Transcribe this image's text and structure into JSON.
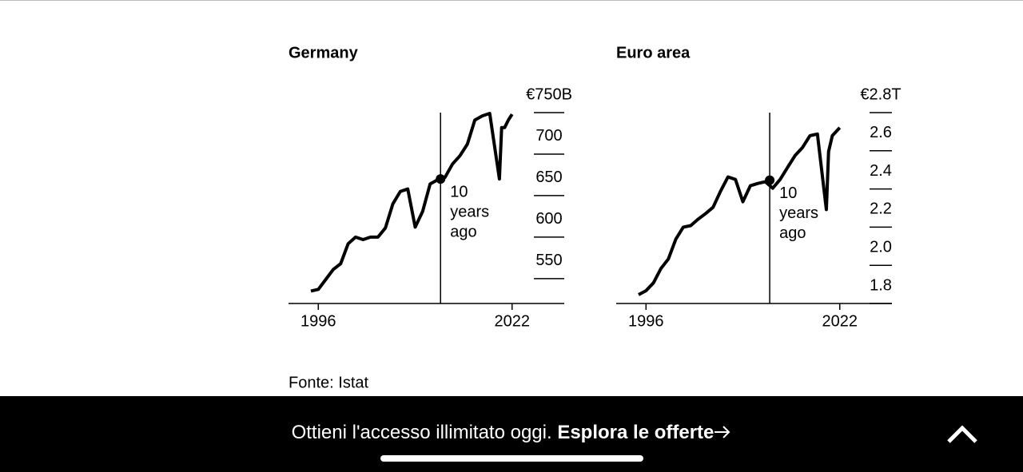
{
  "chart_data": [
    {
      "type": "line",
      "title": "Germany",
      "x": [
        1995,
        1996,
        1997,
        1998,
        1999,
        2000,
        2001,
        2002,
        2003,
        2004,
        2005,
        2006,
        2007,
        2008,
        2009,
        2010,
        2011,
        2012,
        2013,
        2014,
        2015,
        2016,
        2017,
        2018,
        2019,
        2020.3,
        2020.6,
        2021,
        2021.5,
        2022
      ],
      "values": [
        535,
        537,
        549,
        561,
        568,
        592,
        600,
        597,
        600,
        600,
        611,
        640,
        655,
        658,
        612,
        631,
        664,
        669,
        672,
        688,
        698,
        712,
        741,
        746,
        749,
        670,
        732,
        732,
        741,
        748
      ],
      "color": "#000000",
      "xlim": [
        1992,
        2029
      ],
      "xticks": [
        1996,
        2022
      ],
      "ylim": [
        520,
        750
      ],
      "yticks": [
        {
          "value": 750,
          "label": "€750B"
        },
        700,
        650,
        600,
        550
      ],
      "marker_x": 2012.4,
      "marker_value": 670,
      "annotation": [
        "10",
        "years",
        "ago"
      ]
    },
    {
      "type": "line",
      "title": "Euro area",
      "x": [
        1995,
        1996,
        1997,
        1998,
        1999,
        2000,
        2001,
        2002,
        2003,
        2004,
        2005,
        2006,
        2007,
        2008,
        2009,
        2010,
        2011,
        2012,
        2013,
        2014,
        2015,
        2016,
        2017,
        2018,
        2019,
        2020.2,
        2020.5,
        2021,
        2022
      ],
      "values": [
        1.846,
        1.867,
        1.908,
        1.983,
        2.033,
        2.137,
        2.2,
        2.208,
        2.242,
        2.271,
        2.304,
        2.388,
        2.463,
        2.45,
        2.333,
        2.417,
        2.429,
        2.438,
        2.404,
        2.45,
        2.513,
        2.575,
        2.617,
        2.679,
        2.688,
        2.292,
        2.596,
        2.679,
        2.721
      ],
      "color": "#000000",
      "xlim": [
        1992,
        2029
      ],
      "xticks": [
        1996,
        2022
      ],
      "ylim": [
        1.8,
        2.8
      ],
      "yticks": [
        {
          "value": 2.8,
          "label": "€2.8T"
        },
        2.6,
        2.4,
        2.2,
        {
          "value": 2.0,
          "label": "2.0"
        },
        1.8
      ],
      "marker_x": 2012.6,
      "marker_value": 2.446,
      "annotation": [
        "10",
        "years",
        "ago"
      ]
    }
  ],
  "source": "Fonte: Istat",
  "banner": {
    "text": "Ottieni l'accesso illimitato oggi.",
    "link": "Esplora le offerte"
  }
}
